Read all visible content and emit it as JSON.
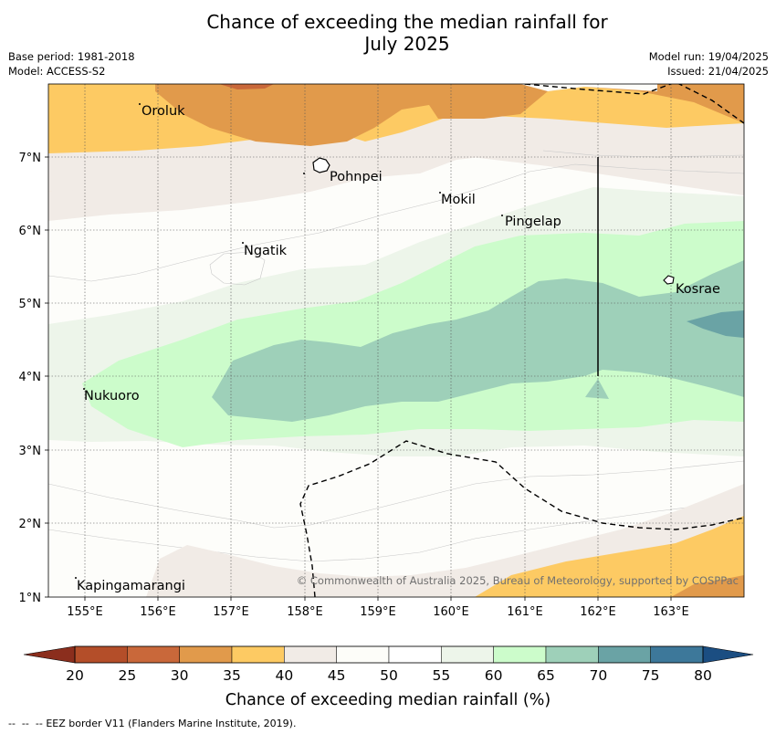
{
  "header": {
    "title_line1": "Chance of exceeding the median rainfall for",
    "title_line2": "July 2025",
    "base_period": "Base period: 1981-2018",
    "model": "Model: ACCESS-S2",
    "model_run": "Model run: 19/04/2025",
    "issued": "Issued: 21/04/2025"
  },
  "map": {
    "copyright": "© Commonwealth of Australia 2025, Bureau of Meteorology, supported by COSPPac",
    "places": [
      {
        "name": "Oroluk",
        "lon": 155.7,
        "lat": 7.65
      },
      {
        "name": "Pohnpei",
        "lon": 158.3,
        "lat": 6.85
      },
      {
        "name": "Mokil",
        "lon": 159.85,
        "lat": 6.38
      },
      {
        "name": "Pingelap",
        "lon": 160.75,
        "lat": 6.13
      },
      {
        "name": "Ngatik",
        "lon": 157.15,
        "lat": 5.73
      },
      {
        "name": "Kosrae",
        "lon": 163.05,
        "lat": 5.28
      },
      {
        "name": "Nukuoro",
        "lon": 154.95,
        "lat": 3.73
      },
      {
        "name": "Kapingamarangi",
        "lon": 154.9,
        "lat": 1.15
      }
    ]
  },
  "chart_data": {
    "type": "heatmap",
    "title": "Chance of exceeding the median rainfall for July 2025",
    "xlabel": "",
    "ylabel": "",
    "xlim": [
      154.5,
      164
    ],
    "ylim": [
      1,
      8
    ],
    "x_ticks": [
      "155°E",
      "156°E",
      "157°E",
      "158°E",
      "159°E",
      "160°E",
      "161°E",
      "162°E",
      "163°E"
    ],
    "y_ticks": [
      "1°N",
      "2°N",
      "3°N",
      "4°N",
      "5°N",
      "6°N",
      "7°N"
    ],
    "grid": true,
    "colorbar": {
      "label": "Chance of exceeding median rainfall (%)",
      "ticks": [
        "20",
        "25",
        "30",
        "35",
        "40",
        "45",
        "50",
        "55",
        "60",
        "65",
        "70",
        "75",
        "80"
      ],
      "colors": [
        "#b44e29",
        "#c9683a",
        "#e19a4b",
        "#fdca63",
        "#f1ebe6",
        "#fdfdf9",
        "#ffffff",
        "#edf5ea",
        "#ccfccb",
        "#9ed0b9",
        "#6aa3a5",
        "#3d789a"
      ],
      "under_color": "#8b2e1d",
      "over_color": "#1b4e82"
    },
    "legend": "EEZ border V11 (Flanders Marine Institute, 2019)."
  }
}
